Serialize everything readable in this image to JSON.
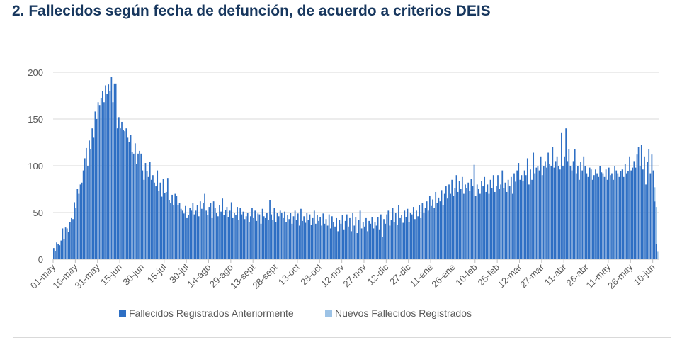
{
  "title": "2.  Fallecidos según fecha de defunción, de acuerdo a criterios DEIS",
  "chart_data": {
    "type": "bar",
    "stacked": true,
    "title": "Fallecidos según fecha de defunción, de acuerdo a criterios DEIS",
    "xlabel": "",
    "ylabel": "",
    "ylim": [
      0,
      200
    ],
    "yticks": [
      "0",
      "50",
      "100",
      "150",
      "200"
    ],
    "grid": true,
    "legend_position": "bottom",
    "start_date": "01-may",
    "x_tick_every_days": 15,
    "xticks": [
      "01-may",
      "16-may",
      "31-may",
      "15-jun",
      "30-jun",
      "15-jul",
      "30-jul",
      "14-ago",
      "29-ago",
      "13-sept",
      "28-sept",
      "13-oct",
      "28-oct",
      "12-nov",
      "27-nov",
      "12-dic",
      "27-dic",
      "11-ene",
      "26-ene",
      "10-feb",
      "25-feb",
      "12-mar",
      "27-mar",
      "11-abr",
      "26-abr",
      "11-may",
      "26-may",
      "10-jun"
    ],
    "series": [
      {
        "name": "Fallecidos Registrados Anteriormente",
        "color": "#2E6FC4",
        "values": [
          12,
          9,
          18,
          16,
          15,
          20,
          33,
          22,
          34,
          33,
          29,
          40,
          44,
          43,
          61,
          55,
          75,
          70,
          80,
          82,
          95,
          108,
          119,
          100,
          127,
          118,
          140,
          130,
          158,
          150,
          168,
          165,
          172,
          180,
          168,
          186,
          177,
          187,
          180,
          195,
          168,
          188,
          188,
          140,
          152,
          140,
          147,
          138,
          137,
          140,
          130,
          125,
          133,
          115,
          113,
          124,
          102,
          113,
          116,
          113,
          95,
          85,
          103,
          94,
          88,
          104,
          85,
          90,
          82,
          78,
          95,
          73,
          82,
          67,
          86,
          71,
          72,
          87,
          63,
          60,
          69,
          58,
          70,
          68,
          58,
          60,
          54,
          52,
          49,
          57,
          44,
          47,
          55,
          52,
          60,
          48,
          52,
          58,
          46,
          62,
          54,
          60,
          70,
          52,
          47,
          56,
          60,
          44,
          62,
          55,
          50,
          46,
          58,
          51,
          65,
          47,
          53,
          56,
          45,
          52,
          61,
          44,
          50,
          47,
          56,
          42,
          55,
          48,
          51,
          43,
          46,
          50,
          40,
          46,
          55,
          44,
          52,
          41,
          49,
          48,
          38,
          54,
          46,
          44,
          50,
          42,
          63,
          48,
          42,
          55,
          40,
          50,
          46,
          52,
          50,
          44,
          51,
          40,
          47,
          43,
          50,
          38,
          46,
          52,
          42,
          49,
          36,
          54,
          41,
          46,
          39,
          50,
          42,
          48,
          37,
          44,
          52,
          38,
          47,
          41,
          45,
          36,
          49,
          38,
          43,
          36,
          48,
          33,
          46,
          40,
          35,
          44,
          30,
          42,
          38,
          47,
          32,
          41,
          48,
          35,
          44,
          30,
          50,
          36,
          45,
          28,
          42,
          52,
          33,
          40,
          35,
          44,
          30,
          41,
          38,
          45,
          33,
          40,
          36,
          45,
          32,
          48,
          24,
          43,
          38,
          48,
          52,
          36,
          42,
          55,
          40,
          50,
          37,
          58,
          44,
          47,
          39,
          52,
          45,
          54,
          40,
          50,
          48,
          56,
          43,
          52,
          46,
          58,
          44,
          60,
          50,
          55,
          62,
          52,
          68,
          57,
          64,
          55,
          72,
          60,
          66,
          62,
          74,
          58,
          70,
          78,
          65,
          80,
          70,
          85,
          68,
          76,
          90,
          72,
          84,
          75,
          88,
          70,
          80,
          76,
          82,
          73,
          86,
          78,
          101,
          68,
          80,
          75,
          70,
          84,
          78,
          88,
          72,
          80,
          70,
          85,
          76,
          90,
          72,
          78,
          90,
          75,
          80,
          95,
          76,
          82,
          72,
          85,
          78,
          88,
          70,
          92,
          83,
          95,
          103,
          85,
          90,
          84,
          95,
          90,
          108,
          80,
          96,
          85,
          114,
          92,
          98,
          100,
          95,
          110,
          90,
          100,
          105,
          98,
          114,
          102,
          100,
          120,
          98,
          105,
          110,
          100,
          96,
          135,
          100,
          110,
          140,
          105,
          118,
          100,
          95,
          105,
          118,
          92,
          100,
          85,
          104,
          95,
          110,
          100,
          92,
          88,
          98,
          96,
          85,
          90,
          96,
          92,
          88,
          100,
          93,
          92,
          88,
          96,
          85,
          98,
          90,
          92,
          85,
          100,
          95,
          92,
          88,
          94,
          96,
          88,
          102,
          92,
          94,
          110,
          95,
          98,
          105,
          98,
          112,
          120,
          100,
          122,
          96,
          110,
          80,
          104,
          118,
          92,
          112,
          95,
          62,
          16,
          0
        ]
      },
      {
        "name": "Nuevos Fallecidos Registrados",
        "color": "#9DC3E6",
        "values_last_days": [
          0,
          15,
          40,
          8
        ]
      }
    ]
  }
}
